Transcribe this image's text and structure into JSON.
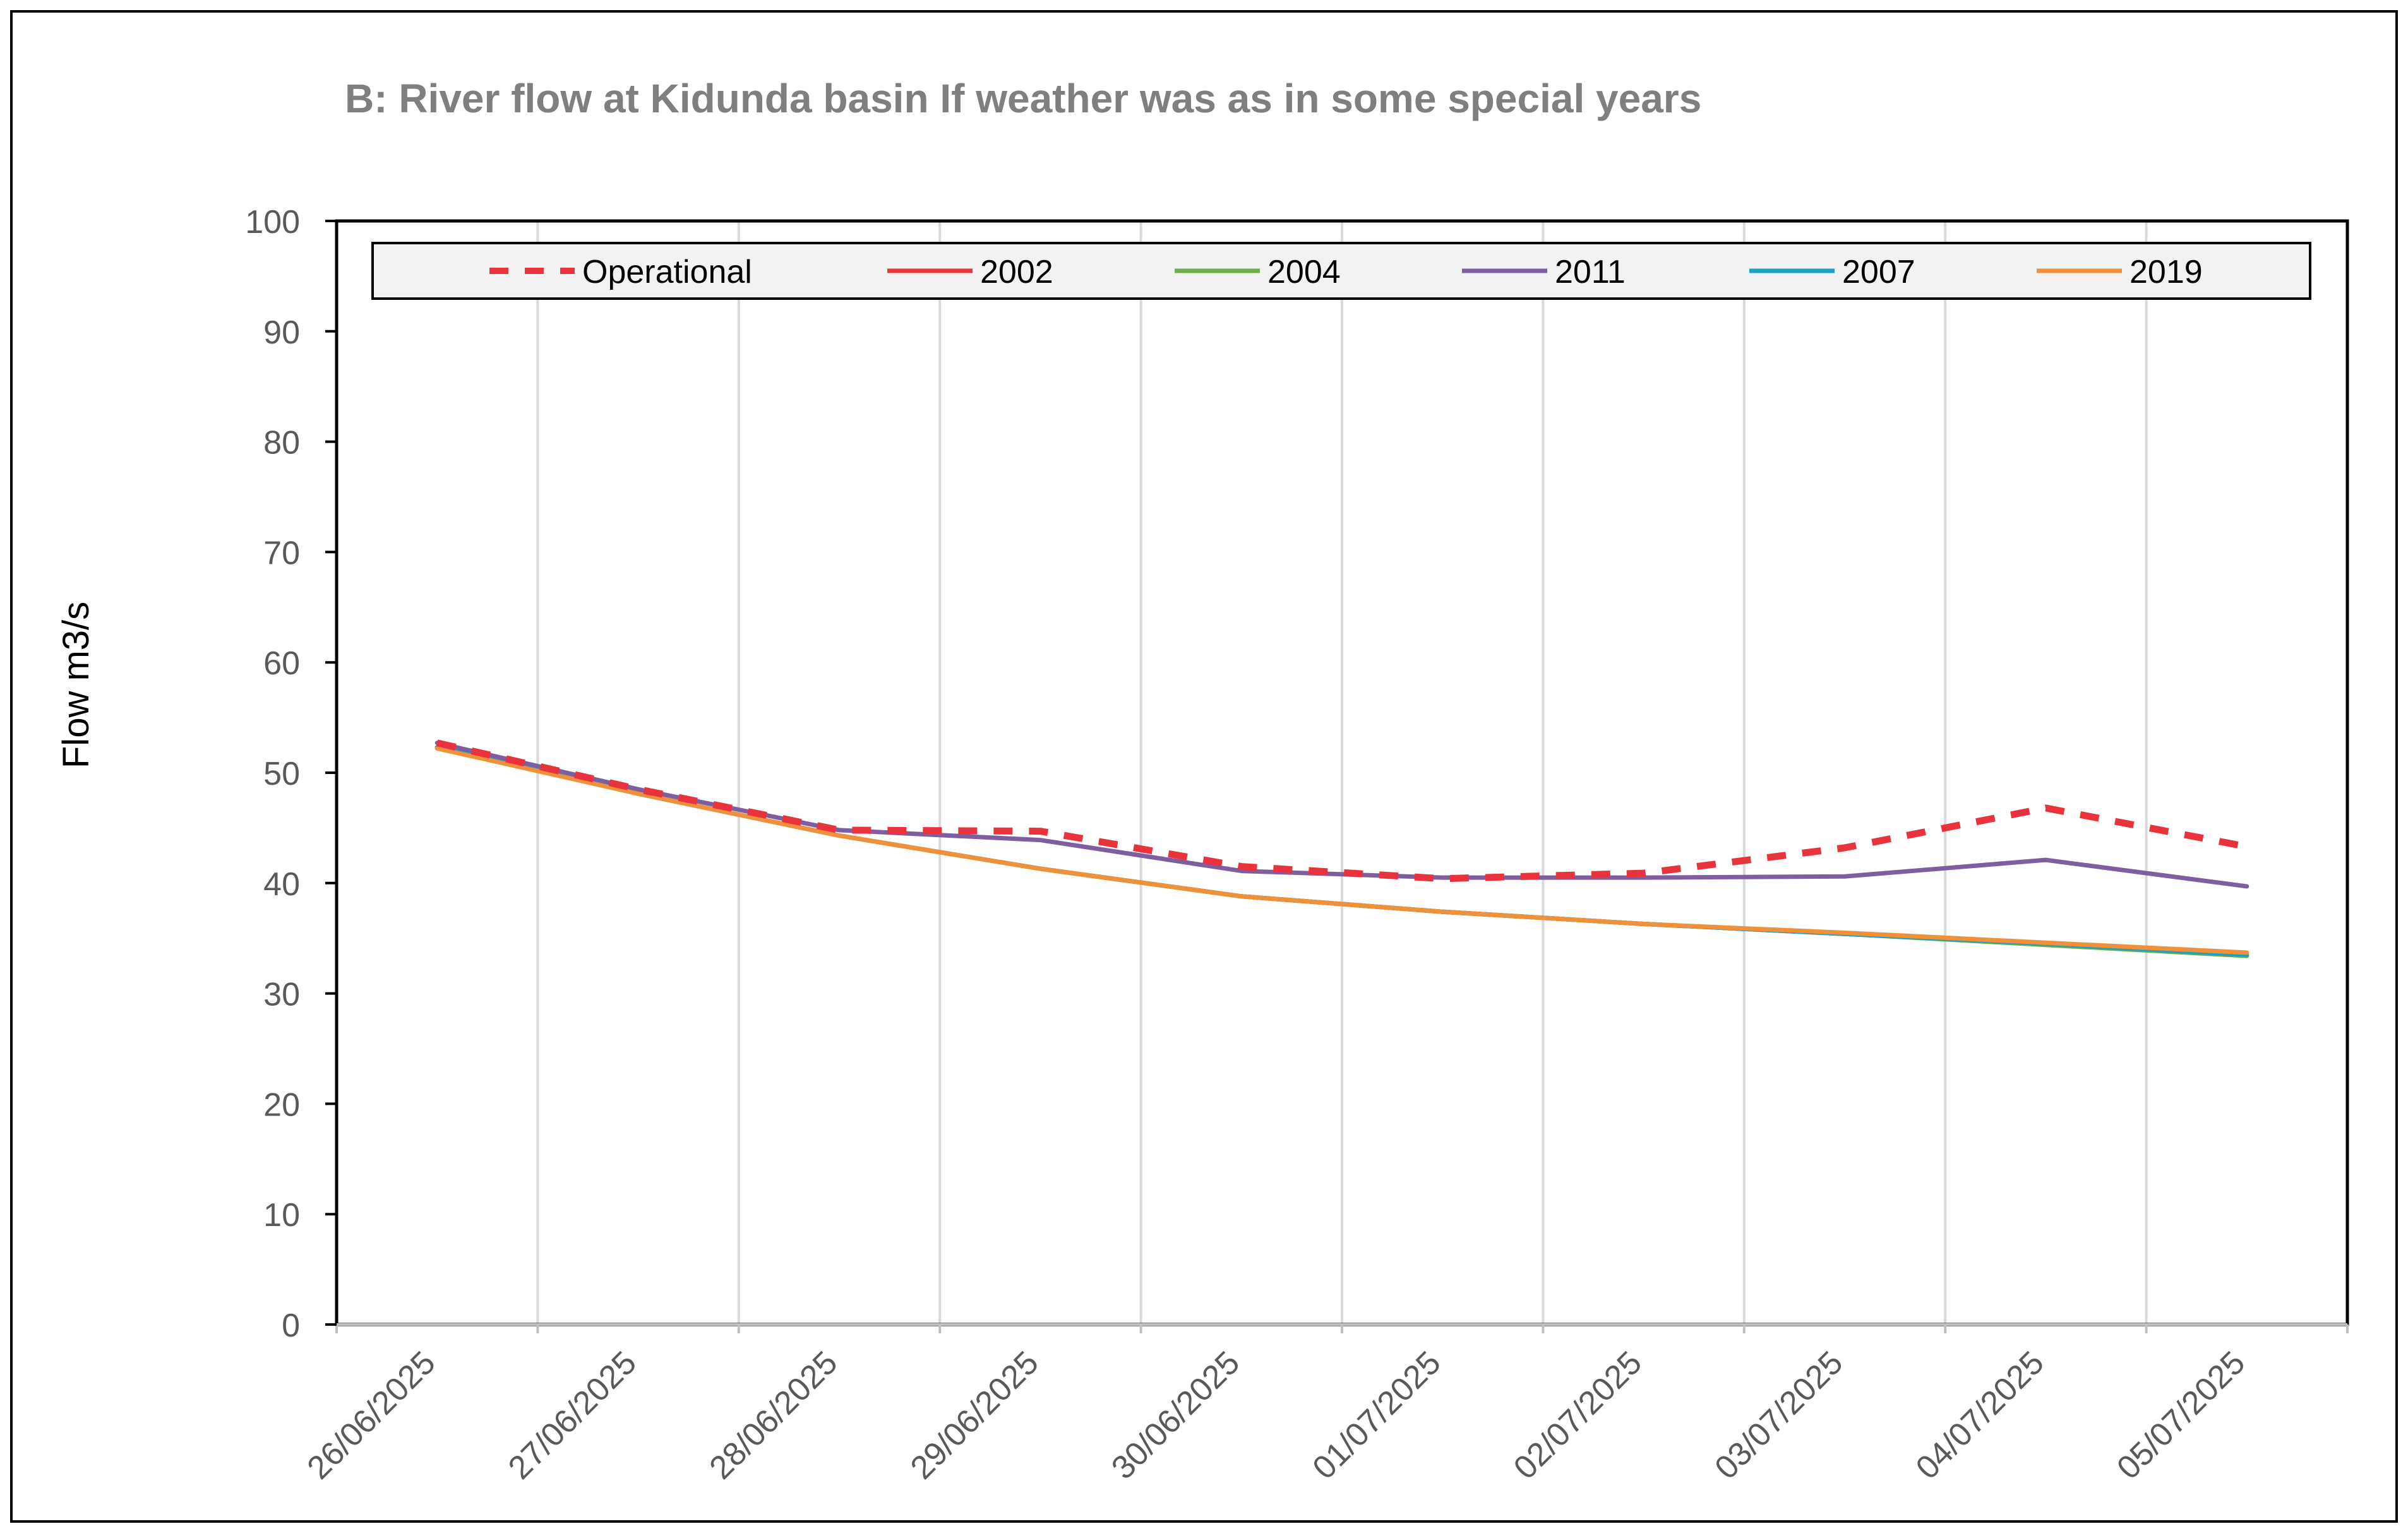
{
  "chart_data": {
    "type": "line",
    "title": "B: River flow at Kidunda basin If weather was as in some special years",
    "xlabel": "",
    "ylabel": "Flow m3/s",
    "ylim": [
      0,
      100
    ],
    "yticks": [
      "0",
      "10",
      "20",
      "30",
      "40",
      "50",
      "60",
      "70",
      "80",
      "90",
      "100"
    ],
    "categories": [
      "26/06/2025",
      "27/06/2025",
      "28/06/2025",
      "29/06/2025",
      "30/06/2025",
      "01/07/2025",
      "02/07/2025",
      "03/07/2025",
      "04/07/2025",
      "05/07/2025"
    ],
    "grid": "vertical",
    "legend_position": "top",
    "series": [
      {
        "name": "Operational",
        "color": "#e8323c",
        "style": "dashed",
        "values": [
          52.7,
          48.5,
          44.8,
          44.7,
          41.5,
          40.4,
          40.9,
          43.2,
          46.8,
          43.3
        ]
      },
      {
        "name": "2002",
        "color": "#e8323c",
        "style": "solid",
        "values": [
          52.3,
          48.1,
          44.3,
          41.3,
          38.8,
          37.4,
          36.3,
          35.4,
          34.5,
          33.5
        ]
      },
      {
        "name": "2004",
        "color": "#70ad47",
        "style": "solid",
        "values": [
          52.3,
          48.1,
          44.3,
          41.3,
          38.8,
          37.4,
          36.3,
          35.4,
          34.4,
          33.4
        ]
      },
      {
        "name": "2011",
        "color": "#7f5ea0",
        "style": "solid",
        "values": [
          52.7,
          48.5,
          44.8,
          43.9,
          41.1,
          40.5,
          40.5,
          40.6,
          42.1,
          39.7
        ]
      },
      {
        "name": "2007",
        "color": "#1ba1c7",
        "style": "solid",
        "values": [
          52.3,
          48.1,
          44.3,
          41.3,
          38.8,
          37.4,
          36.3,
          35.4,
          34.5,
          33.5
        ]
      },
      {
        "name": "2019",
        "color": "#f0913a",
        "style": "solid",
        "values": [
          52.2,
          48.1,
          44.3,
          41.3,
          38.8,
          37.4,
          36.3,
          35.5,
          34.6,
          33.7
        ]
      }
    ]
  }
}
